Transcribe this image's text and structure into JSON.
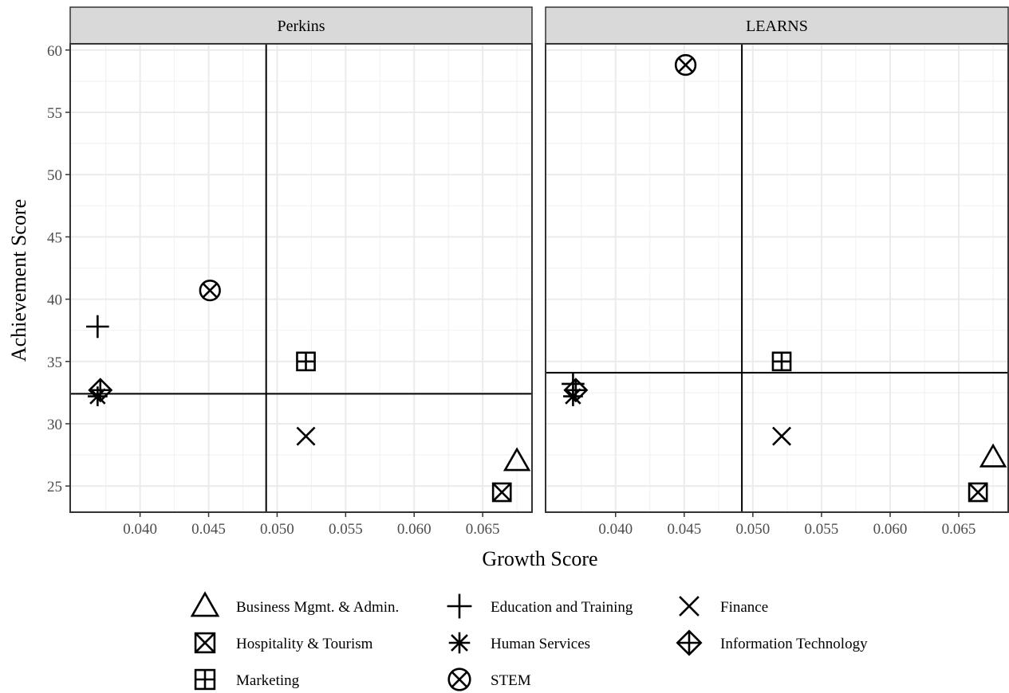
{
  "chart_data": {
    "type": "scatter",
    "xlabel": "Growth Score",
    "ylabel": "Achievement Score",
    "xlim": [
      0.0349,
      0.0686
    ],
    "ylim": [
      22.9,
      60.5
    ],
    "x_ticks": [
      0.04,
      0.045,
      0.05,
      0.055,
      0.06,
      0.065
    ],
    "x_tick_labels": [
      "0.040",
      "0.045",
      "0.050",
      "0.055",
      "0.060",
      "0.065"
    ],
    "y_ticks": [
      25,
      30,
      35,
      40,
      45,
      50,
      55,
      60
    ],
    "y_tick_labels": [
      "25",
      "30",
      "35",
      "40",
      "45",
      "50",
      "55",
      "60"
    ],
    "grid": true,
    "legend_position": "bottom",
    "legend_columns": 3,
    "legend": [
      {
        "name": "Business Mgmt. & Admin.",
        "shape": "triangle-open"
      },
      {
        "name": "Education and Training",
        "shape": "plus"
      },
      {
        "name": "Finance",
        "shape": "cross"
      },
      {
        "name": "Hospitality & Tourism",
        "shape": "square-cross"
      },
      {
        "name": "Human Services",
        "shape": "asterisk"
      },
      {
        "name": "Information Technology",
        "shape": "diamond-plus"
      },
      {
        "name": "Marketing",
        "shape": "square-plus"
      },
      {
        "name": "STEM",
        "shape": "circle-cross"
      }
    ],
    "panels": [
      {
        "name": "Perkins",
        "vline": 0.0492,
        "hline": 32.4,
        "points": [
          {
            "series": "Business Mgmt. & Admin.",
            "x": 0.0675,
            "y": 27.0
          },
          {
            "series": "Education and Training",
            "x": 0.0369,
            "y": 37.8
          },
          {
            "series": "Finance",
            "x": 0.0521,
            "y": 29.0
          },
          {
            "series": "Hospitality & Tourism",
            "x": 0.0664,
            "y": 24.5
          },
          {
            "series": "Human Services",
            "x": 0.0369,
            "y": 32.2
          },
          {
            "series": "Information Technology",
            "x": 0.0371,
            "y": 32.7
          },
          {
            "series": "Marketing",
            "x": 0.0521,
            "y": 35.0
          },
          {
            "series": "STEM",
            "x": 0.0451,
            "y": 40.7
          }
        ]
      },
      {
        "name": "LEARNS",
        "vline": 0.0492,
        "hline": 34.1,
        "points": [
          {
            "series": "Business Mgmt. & Admin.",
            "x": 0.0675,
            "y": 27.3
          },
          {
            "series": "Education and Training",
            "x": 0.0369,
            "y": 33.2
          },
          {
            "series": "Finance",
            "x": 0.0521,
            "y": 29.0
          },
          {
            "series": "Hospitality & Tourism",
            "x": 0.0664,
            "y": 24.5
          },
          {
            "series": "Human Services",
            "x": 0.0369,
            "y": 32.2
          },
          {
            "series": "Information Technology",
            "x": 0.0371,
            "y": 32.7
          },
          {
            "series": "Marketing",
            "x": 0.0521,
            "y": 35.0
          },
          {
            "series": "STEM",
            "x": 0.0451,
            "y": 58.8
          }
        ]
      }
    ]
  }
}
